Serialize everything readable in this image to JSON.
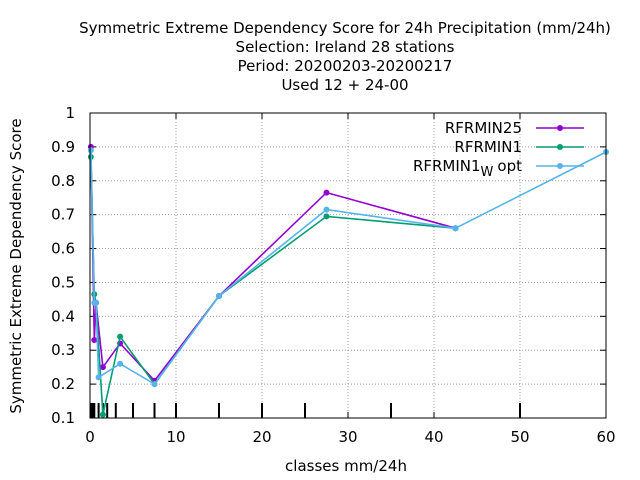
{
  "title_lines": [
    "Symmetric Extreme Dependency Score  for 24h Precipitation (mm/24h)",
    "Selection: Ireland     28 stations",
    "Period: 20200203-20200217",
    "Used  12 + 24-00"
  ],
  "chart_data": {
    "type": "line",
    "xlabel": "classes mm/24h",
    "ylabel": "Symmetric Extreme Dependency Score",
    "xlim": [
      0,
      60
    ],
    "ylim": [
      0.1,
      1.0
    ],
    "x_ticks": [
      0,
      10,
      20,
      30,
      40,
      50,
      60
    ],
    "x_tick_labels": [
      "0",
      "10",
      "20",
      "30",
      "40",
      "50",
      "60"
    ],
    "y_ticks": [
      0.1,
      0.2,
      0.3,
      0.4,
      0.5,
      0.6,
      0.7,
      0.8,
      0.9,
      1.0
    ],
    "y_tick_labels": [
      "0.1",
      "0.2",
      "0.3",
      "0.4",
      "0.5",
      "0.6",
      "0.7",
      "0.8",
      "0.9",
      "1"
    ],
    "grid": true,
    "legend_position": "top-right",
    "class_marks": [
      0.1,
      0.3,
      0.5,
      1.0,
      1.5,
      2.0,
      3.0,
      5.0,
      7.5,
      10.0,
      15.0,
      20.0,
      25.0,
      35.0,
      50.0
    ],
    "series": [
      {
        "name": "RFRMIN25",
        "color": "#9400d3",
        "x": [
          0.1,
          0.5,
          0.7,
          1.5,
          3.5,
          7.5,
          15,
          27.5,
          42.5
        ],
        "y": [
          0.9,
          0.33,
          0.44,
          0.25,
          0.32,
          0.21,
          0.46,
          0.765,
          0.66
        ]
      },
      {
        "name": "RFRMIN1",
        "color": "#009e73",
        "x": [
          0.1,
          0.5,
          0.7,
          1.5,
          3.5,
          7.5,
          15,
          27.5,
          42.5
        ],
        "y": [
          0.87,
          0.465,
          0.44,
          0.11,
          0.34,
          0.2,
          0.46,
          0.695,
          0.66
        ]
      },
      {
        "legend_main": "RFRMIN1",
        "legend_sub": "W",
        "legend_tail": "opt",
        "color": "#56b4e9",
        "x": [
          0.1,
          0.5,
          0.7,
          1.0,
          3.5,
          7.5,
          15,
          27.5,
          42.5,
          60
        ],
        "y": [
          0.89,
          0.44,
          0.44,
          0.22,
          0.26,
          0.2,
          0.46,
          0.715,
          0.66,
          0.885
        ]
      }
    ]
  }
}
